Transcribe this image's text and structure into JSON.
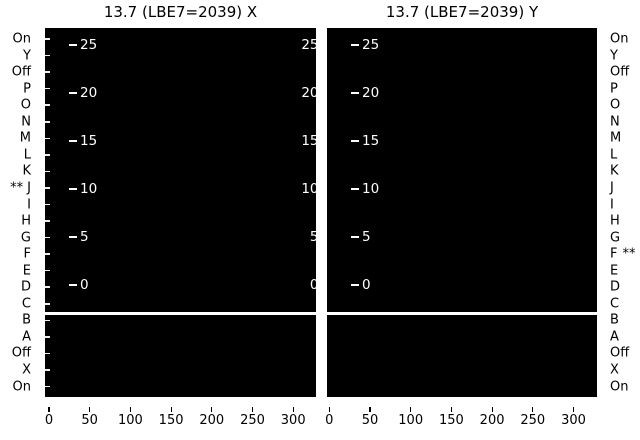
{
  "titles": {
    "left": "13.7 (LBE7=2039) X",
    "right": "13.7 (LBE7=2039) Y"
  },
  "y_axis": {
    "labels": [
      "On",
      "Y",
      "Off",
      "P",
      "O",
      "N",
      "M",
      "L",
      "K",
      "J",
      "I",
      "H",
      "G",
      "F",
      "E",
      "D",
      "C",
      "B",
      "A",
      "Off",
      "X",
      "On"
    ],
    "marker": "**",
    "left_marked_index": 9,
    "right_marked_index": 13
  },
  "inner_y_tick_labels": [
    "25",
    "20",
    "15",
    "10",
    "5",
    "0"
  ],
  "x_tick_labels": [
    "0",
    "50",
    "100",
    "150",
    "200",
    "250",
    "300"
  ],
  "colors": {
    "background": "#ffffff",
    "panel": "#000000",
    "inner_text": "#ffffff",
    "outer_text": "#000000",
    "separator": "#ffffff"
  },
  "chart_data": [
    {
      "type": "heatmap",
      "title": "13.7 (LBE7=2039) X",
      "xlabel": "",
      "ylabel": "",
      "x_ticks": [
        0,
        50,
        100,
        150,
        200,
        250,
        300
      ],
      "x_range": [
        -5,
        330
      ],
      "inner_y_ticks": [
        25,
        20,
        15,
        10,
        5,
        0
      ],
      "y_categories_top_to_bottom": [
        "On",
        "Y",
        "Off",
        "P",
        "O",
        "N",
        "M",
        "L",
        "K",
        "J",
        "I",
        "H",
        "G",
        "F",
        "E",
        "D",
        "C",
        "B",
        "A",
        "Off",
        "X",
        "On"
      ],
      "marked_category": "J",
      "marked_with": "**",
      "separator_between_categories": [
        "C",
        "B"
      ],
      "panel_fill": "black",
      "data_points_visible": "none (blank black panel)",
      "grid": false,
      "legend": false
    },
    {
      "type": "heatmap",
      "title": "13.7 (LBE7=2039) Y",
      "xlabel": "",
      "ylabel": "",
      "x_ticks": [
        0,
        50,
        100,
        150,
        200,
        250,
        300
      ],
      "x_range": [
        -5,
        330
      ],
      "inner_y_ticks": [
        25,
        20,
        15,
        10,
        5,
        0
      ],
      "y_categories_top_to_bottom": [
        "On",
        "Y",
        "Off",
        "P",
        "O",
        "N",
        "M",
        "L",
        "K",
        "J",
        "I",
        "H",
        "G",
        "F",
        "E",
        "D",
        "C",
        "B",
        "A",
        "Off",
        "X",
        "On"
      ],
      "marked_category": "F",
      "marked_with": "**",
      "separator_between_categories": [
        "C",
        "B"
      ],
      "panel_fill": "black",
      "data_points_visible": "none (blank black panel)",
      "grid": false,
      "legend": false
    }
  ]
}
